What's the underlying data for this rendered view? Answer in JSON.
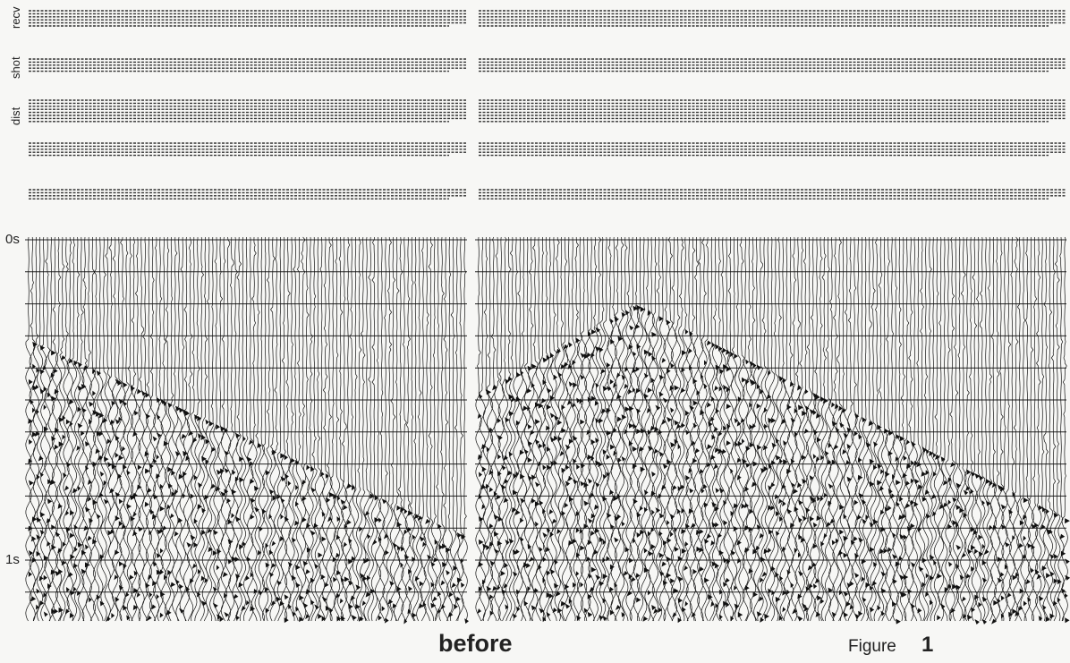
{
  "header_labels": [
    "recv",
    "shot",
    "dist"
  ],
  "time_labels": [
    "0s",
    "1s"
  ],
  "caption": "before",
  "figure": {
    "label": "Figure",
    "number": "1"
  }
}
